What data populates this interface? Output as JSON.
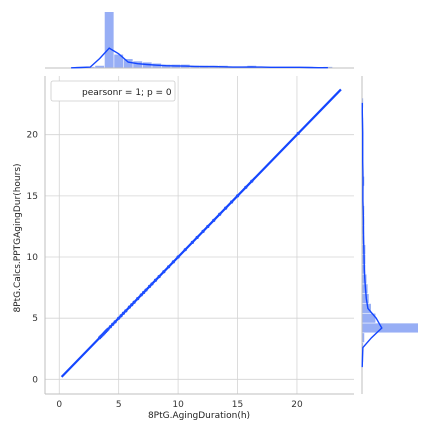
{
  "chart_data": {
    "type": "scatter",
    "kind": "jointplot",
    "xlabel": "8PtG.AgingDuration(h)",
    "ylabel": "8PtG.Calcs.PPTGAgingDur(hours)",
    "xlim": [
      -1.2,
      24.8
    ],
    "ylim": [
      -1.2,
      24.8
    ],
    "xticks": [
      0,
      5,
      10,
      15,
      20
    ],
    "yticks": [
      0,
      5,
      10,
      15,
      20
    ],
    "grid": true,
    "legend": {
      "text": "pearsonr = 1; p = 0",
      "placement": "top-left"
    },
    "colors": {
      "points": "#1f4fff",
      "fit_line": "#1446ff",
      "hist_fill": "#97aef5",
      "grid": "#d4d4d4",
      "spine": "#bfbfbf"
    },
    "points": {
      "x": [
        3.4,
        3.5,
        3.6,
        3.7,
        3.8,
        3.9,
        4.0,
        4.1,
        4.3,
        4.5,
        4.7,
        5.0,
        5.2,
        5.4,
        5.6,
        5.9,
        6.1,
        6.3,
        6.6,
        6.9,
        7.1,
        7.3,
        7.6,
        7.8,
        8.1,
        8.4,
        8.8,
        9.2,
        9.6,
        10.0,
        10.6,
        11.2,
        11.6,
        12.1,
        12.5,
        13.0,
        13.5,
        14.0,
        14.5,
        15.0,
        15.7,
        16.2,
        20.1
      ],
      "y": [
        3.4,
        3.5,
        3.6,
        3.7,
        3.8,
        3.9,
        4.0,
        4.1,
        4.3,
        4.5,
        4.7,
        5.0,
        5.2,
        5.4,
        5.6,
        5.9,
        6.1,
        6.3,
        6.6,
        6.9,
        7.1,
        7.3,
        7.6,
        7.8,
        8.1,
        8.4,
        8.8,
        9.2,
        9.6,
        10.0,
        10.6,
        11.2,
        11.6,
        12.1,
        12.5,
        13.0,
        13.5,
        14.0,
        14.5,
        15.0,
        15.7,
        16.2,
        20.1
      ]
    },
    "fit_line": {
      "x": [
        0.2,
        23.7
      ],
      "y": [
        0.2,
        23.7
      ]
    },
    "marginal_x_hist": {
      "bin_edges": [
        0.6,
        1.4,
        2.2,
        3.0,
        3.8,
        4.6,
        5.4,
        6.2,
        7.0,
        7.8,
        8.6,
        9.4,
        10.2,
        11.0,
        11.8,
        12.6,
        13.4,
        14.2,
        15.0,
        15.8,
        16.6,
        17.4,
        18.2,
        19.0,
        19.8,
        20.6,
        21.4,
        22.2,
        23.0
      ],
      "counts": [
        0,
        1,
        1,
        2,
        50,
        12,
        8,
        6,
        5,
        4,
        3,
        3,
        3,
        2,
        2,
        2,
        2,
        1,
        1,
        2,
        1,
        1,
        1,
        1,
        1,
        1,
        0,
        1
      ]
    },
    "marginal_y_hist": {
      "bin_edges": [
        0.6,
        1.4,
        2.2,
        3.0,
        3.8,
        4.6,
        5.4,
        6.2,
        7.0,
        7.8,
        8.6,
        9.4,
        10.2,
        11.0,
        11.8,
        12.6,
        13.4,
        14.2,
        15.0,
        15.8,
        16.6,
        17.4,
        18.2,
        19.0,
        19.8,
        20.6,
        21.4,
        22.2,
        23.0
      ],
      "counts": [
        0,
        1,
        1,
        2,
        50,
        12,
        8,
        6,
        5,
        4,
        3,
        3,
        3,
        2,
        2,
        2,
        2,
        1,
        1,
        2,
        1,
        1,
        1,
        1,
        1,
        1,
        0,
        1
      ]
    }
  }
}
